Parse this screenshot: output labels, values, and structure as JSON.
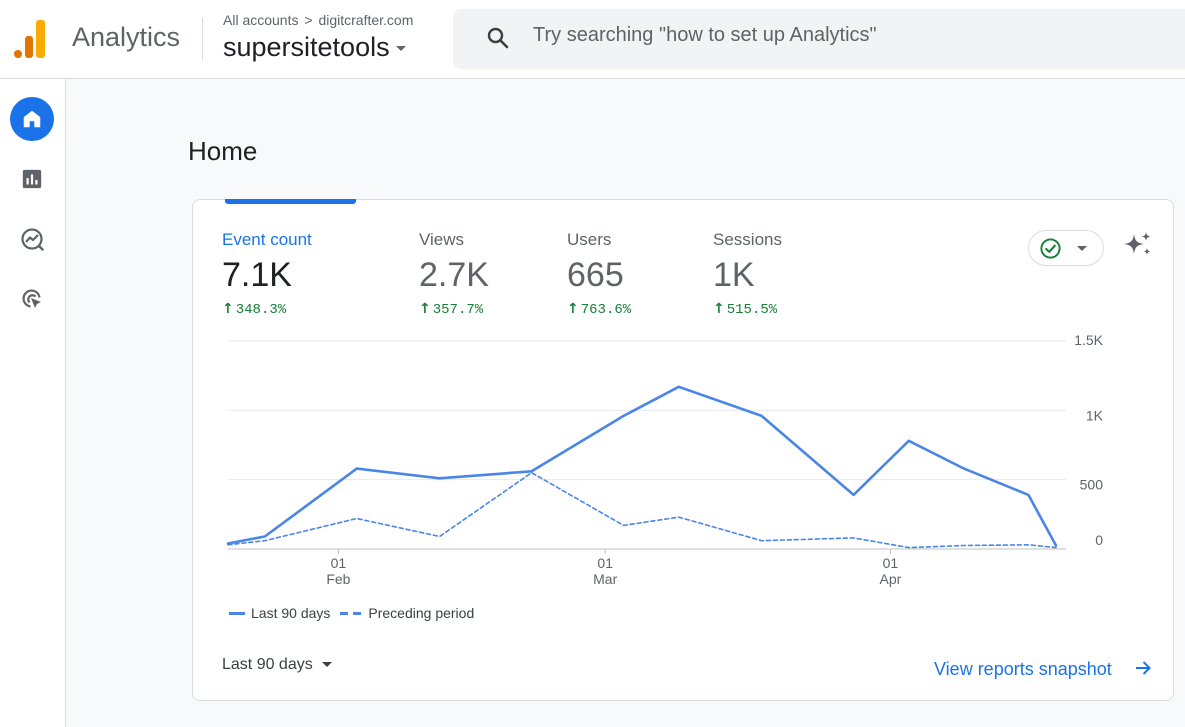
{
  "header": {
    "app_name": "Analytics",
    "breadcrumb": {
      "root": "All accounts",
      "separator": ">",
      "account": "digitcrafter.com"
    },
    "property": "supersitetools",
    "search_placeholder": "Try searching \"how to set up Analytics\""
  },
  "nav": {
    "items": [
      {
        "name": "Home",
        "icon": "home-icon",
        "active": true
      },
      {
        "name": "Reports",
        "icon": "reports-icon",
        "active": false
      },
      {
        "name": "Explore",
        "icon": "explore-icon",
        "active": false
      },
      {
        "name": "Advertising",
        "icon": "advertising-icon",
        "active": false
      }
    ]
  },
  "page": {
    "title": "Home"
  },
  "metrics": [
    {
      "label": "Event count",
      "value": "7.1K",
      "change": "348.3%",
      "active": true
    },
    {
      "label": "Views",
      "value": "2.7K",
      "change": "357.7%",
      "active": false
    },
    {
      "label": "Users",
      "value": "665",
      "change": "763.6%",
      "active": false
    },
    {
      "label": "Sessions",
      "value": "1K",
      "change": "515.5%",
      "active": false
    }
  ],
  "colors": {
    "accent": "#1a73e8",
    "series": "#4a86e8",
    "positive": "#188038"
  },
  "chart_data": {
    "type": "line",
    "ylim": [
      0,
      1500
    ],
    "y_ticks": [
      "1.5K",
      "1K",
      "500",
      "0"
    ],
    "y_tick_values": [
      1500,
      1000,
      500,
      0
    ],
    "x_ticks": [
      {
        "day": "01",
        "month": "Feb",
        "date": "2024-02-01"
      },
      {
        "day": "01",
        "month": "Mar",
        "date": "2024-03-01"
      },
      {
        "day": "01",
        "month": "Apr",
        "date": "2024-04-01"
      }
    ],
    "xlim": [
      "2024-01-20",
      "2024-04-19"
    ],
    "series": [
      {
        "name": "Last 90 days",
        "style": "solid",
        "x": [
          "2024-01-20",
          "2024-01-24",
          "2024-02-03",
          "2024-02-12",
          "2024-02-22",
          "2024-03-03",
          "2024-03-09",
          "2024-03-18",
          "2024-03-28",
          "2024-04-03",
          "2024-04-09",
          "2024-04-16",
          "2024-04-19"
        ],
        "values": [
          40,
          90,
          580,
          510,
          560,
          960,
          1170,
          960,
          390,
          780,
          580,
          390,
          25
        ]
      },
      {
        "name": "Preceding period",
        "style": "dashed",
        "x": [
          "2024-01-20",
          "2024-01-24",
          "2024-02-03",
          "2024-02-12",
          "2024-02-22",
          "2024-03-03",
          "2024-03-09",
          "2024-03-18",
          "2024-03-28",
          "2024-04-03",
          "2024-04-09",
          "2024-04-16",
          "2024-04-19"
        ],
        "values": [
          30,
          60,
          220,
          90,
          550,
          170,
          230,
          60,
          80,
          10,
          25,
          30,
          10
        ]
      }
    ]
  },
  "legend": [
    "Last 90 days",
    "Preceding period"
  ],
  "date_range": "Last 90 days",
  "snapshot_link": "View reports snapshot"
}
